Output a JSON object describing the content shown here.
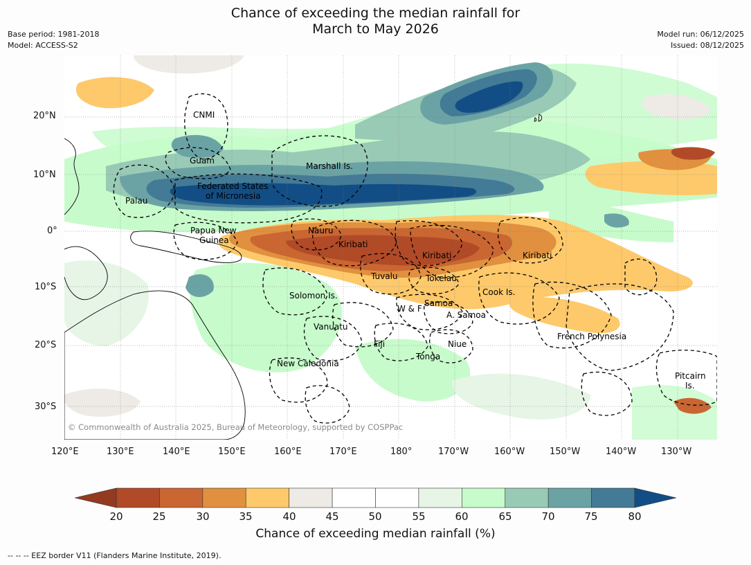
{
  "title": {
    "line1": "Chance of exceeding the median rainfall for",
    "line2": "March to May 2026"
  },
  "meta": {
    "base_period": "Base period: 1981-2018",
    "model": "Model: ACCESS-S2",
    "model_run": "Model run: 06/12/2025",
    "issued": "Issued: 08/12/2025"
  },
  "map": {
    "lon_ticks": [
      "120°E",
      "130°E",
      "140°E",
      "150°E",
      "160°E",
      "170°E",
      "180°",
      "170°W",
      "160°W",
      "150°W",
      "140°W",
      "130°W"
    ],
    "lat_ticks": [
      "20°N",
      "10°N",
      "0°",
      "10°S",
      "20°S",
      "30°S"
    ],
    "regions": [
      "CNMI",
      "Guam",
      "Marshall Is.",
      "Federated States",
      "of Micronesia",
      "Palau",
      "Papua New",
      "Guinea",
      "Nauru",
      "Kiribati",
      "Kiribati",
      "Kiribati",
      "Tuvalu",
      "Tokelau",
      "Solomon Is.",
      "Samoa",
      "W & F",
      "A. Samoa",
      "Cook Is.",
      "Vanuatu",
      "Fiji",
      "Niue",
      "Tonga",
      "French Polynesia",
      "New Caledonia",
      "Pitcairn",
      "Is."
    ],
    "copyright": "© Commonwealth of Australia 2025, Bureau of Meteorology, supported by COSPPac"
  },
  "colorbar": {
    "ticks": [
      "20",
      "25",
      "30",
      "35",
      "40",
      "45",
      "50",
      "55",
      "60",
      "65",
      "70",
      "75",
      "80"
    ],
    "colors": [
      "#b14a27",
      "#c96631",
      "#e0903f",
      "#fdc96b",
      "#eeebe6",
      "#ffffff",
      "#ffffff",
      "#e6f5e6",
      "#c7fbcb",
      "#98cab5",
      "#6ba3a5",
      "#437a95"
    ],
    "low_extend": "#933a21",
    "high_extend": "#124e85",
    "title": "Chance of exceeding median rainfall (%)"
  },
  "footnote": "--  --  -- EEZ border V11 (Flanders Marine Institute, 2019)."
}
